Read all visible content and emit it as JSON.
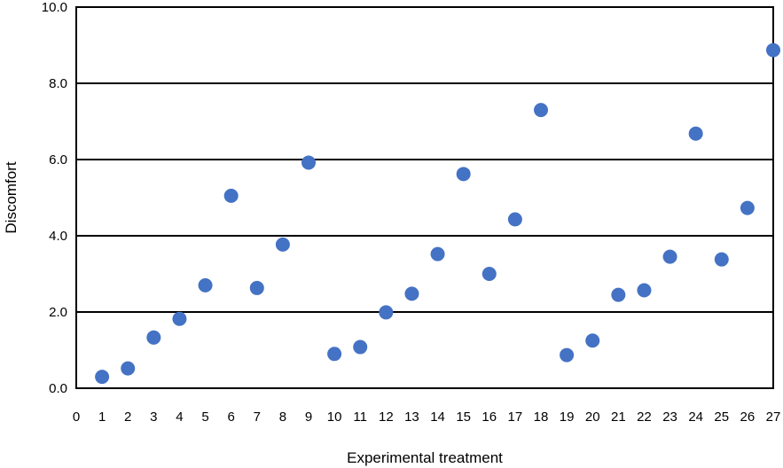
{
  "chart_data": {
    "type": "scatter",
    "title": "",
    "xlabel": "Experimental treatment",
    "ylabel": "Discomfort",
    "xlim": [
      0,
      27
    ],
    "ylim": [
      0,
      10
    ],
    "x_ticks": [
      "0",
      "1",
      "2",
      "3",
      "4",
      "5",
      "6",
      "7",
      "8",
      "9",
      "10",
      "11",
      "12",
      "13",
      "14",
      "15",
      "16",
      "17",
      "18",
      "19",
      "20",
      "21",
      "22",
      "23",
      "24",
      "25",
      "26",
      "27"
    ],
    "y_ticks": [
      "0.0",
      "2.0",
      "4.0",
      "6.0",
      "8.0",
      "10.0"
    ],
    "y_tick_values": [
      0,
      2,
      4,
      6,
      8,
      10
    ],
    "grid": "horizontal",
    "marker_color": "#4472C4",
    "points": [
      {
        "x": 1,
        "y": 0.3
      },
      {
        "x": 2,
        "y": 0.52
      },
      {
        "x": 3,
        "y": 1.33
      },
      {
        "x": 4,
        "y": 1.82
      },
      {
        "x": 5,
        "y": 2.7
      },
      {
        "x": 6,
        "y": 5.05
      },
      {
        "x": 7,
        "y": 2.63
      },
      {
        "x": 8,
        "y": 3.77
      },
      {
        "x": 9,
        "y": 5.92
      },
      {
        "x": 10,
        "y": 0.9
      },
      {
        "x": 11,
        "y": 1.08
      },
      {
        "x": 12,
        "y": 1.99
      },
      {
        "x": 13,
        "y": 2.48
      },
      {
        "x": 14,
        "y": 3.52
      },
      {
        "x": 15,
        "y": 5.62
      },
      {
        "x": 16,
        "y": 3.0
      },
      {
        "x": 17,
        "y": 4.43
      },
      {
        "x": 18,
        "y": 7.3
      },
      {
        "x": 19,
        "y": 0.87
      },
      {
        "x": 20,
        "y": 1.25
      },
      {
        "x": 21,
        "y": 2.45
      },
      {
        "x": 22,
        "y": 2.57
      },
      {
        "x": 23,
        "y": 3.45
      },
      {
        "x": 24,
        "y": 6.68
      },
      {
        "x": 25,
        "y": 3.38
      },
      {
        "x": 26,
        "y": 4.73
      },
      {
        "x": 27,
        "y": 8.87
      }
    ]
  }
}
